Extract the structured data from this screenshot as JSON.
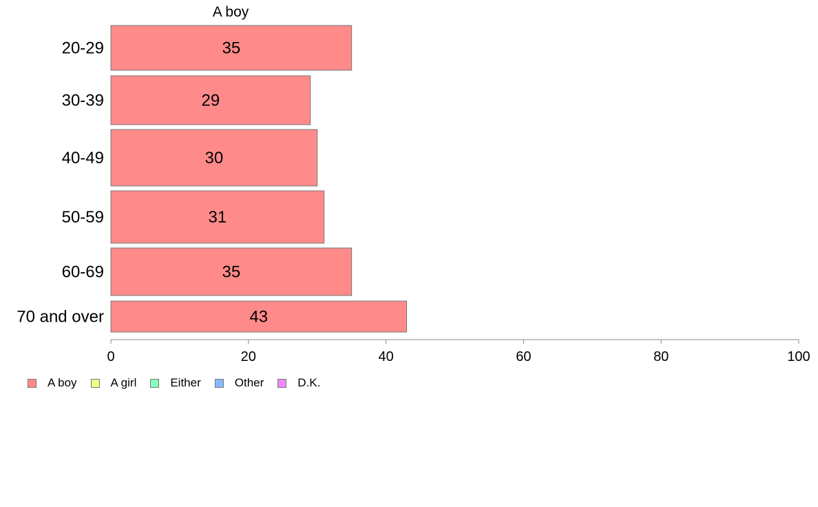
{
  "chart_data": {
    "type": "bar",
    "orientation": "horizontal",
    "title": "A boy",
    "categories": [
      "20-29",
      "30-39",
      "40-49",
      "50-59",
      "60-69",
      "70 and over"
    ],
    "series": [
      {
        "name": "A boy",
        "values": [
          35,
          29,
          30,
          31,
          35,
          43
        ]
      }
    ],
    "xlim": [
      0,
      100
    ],
    "xticks": [
      0,
      20,
      40,
      60,
      80,
      100
    ],
    "xlabel": "",
    "ylabel": "",
    "grid": false,
    "legend_position": "bottom-left",
    "bar_color": "#ff8a8a",
    "legend": [
      {
        "label": "A boy",
        "color": "#ff8a8a"
      },
      {
        "label": "A girl",
        "color": "#eeff88"
      },
      {
        "label": "Either",
        "color": "#88ffbb"
      },
      {
        "label": "Other",
        "color": "#88b8ff"
      },
      {
        "label": "D.K.",
        "color": "#ee88ff"
      }
    ]
  }
}
